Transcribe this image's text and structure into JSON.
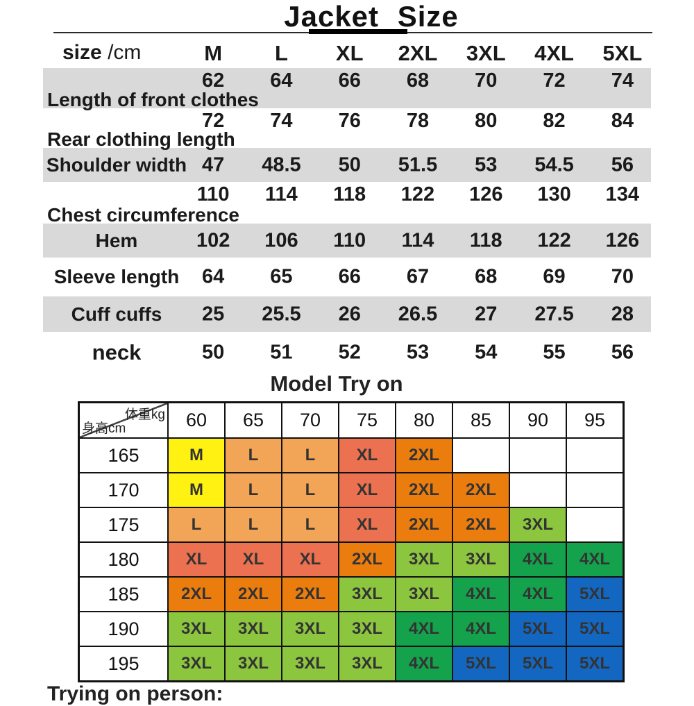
{
  "title": "Jacket Size",
  "size_table": {
    "header": {
      "label": "size",
      "unit": "/cm",
      "columns": [
        "M",
        "L",
        "XL",
        "2XL",
        "3XL",
        "4XL",
        "5XL"
      ]
    },
    "rows": [
      {
        "label": "Length of front clothes",
        "values": [
          "62",
          "64",
          "66",
          "68",
          "70",
          "72",
          "74"
        ]
      },
      {
        "label": "Rear clothing length",
        "values": [
          "72",
          "74",
          "76",
          "78",
          "80",
          "82",
          "84"
        ]
      },
      {
        "label": "Shoulder width",
        "values": [
          "47",
          "48.5",
          "50",
          "51.5",
          "53",
          "54.5",
          "56"
        ]
      },
      {
        "label": "Chest circumference",
        "values": [
          "110",
          "114",
          "118",
          "122",
          "126",
          "130",
          "134"
        ]
      },
      {
        "label": "Hem",
        "values": [
          "102",
          "106",
          "110",
          "114",
          "118",
          "122",
          "126"
        ]
      },
      {
        "label": "Sleeve length",
        "values": [
          "64",
          "65",
          "66",
          "67",
          "68",
          "69",
          "70"
        ]
      },
      {
        "label": "Cuff cuffs",
        "values": [
          "25",
          "25.5",
          "26",
          "26.5",
          "27",
          "27.5",
          "28"
        ]
      },
      {
        "label": "neck",
        "values": [
          "50",
          "51",
          "52",
          "53",
          "54",
          "55",
          "56"
        ]
      }
    ]
  },
  "model_try_on": {
    "title": "Model Try on",
    "corner": {
      "top_right": "体重kg",
      "bottom_left": "身高cm"
    },
    "weight_columns": [
      "60",
      "65",
      "70",
      "75",
      "80",
      "85",
      "90",
      "95"
    ],
    "rows": [
      {
        "height": "165",
        "cells": [
          "M",
          "L",
          "L",
          "XL",
          "2XL",
          "",
          "",
          ""
        ]
      },
      {
        "height": "170",
        "cells": [
          "M",
          "L",
          "L",
          "XL",
          "2XL",
          "2XL",
          "",
          ""
        ]
      },
      {
        "height": "175",
        "cells": [
          "L",
          "L",
          "L",
          "XL",
          "2XL",
          "2XL",
          "3XL",
          ""
        ]
      },
      {
        "height": "180",
        "cells": [
          "XL",
          "XL",
          "XL",
          "2XL",
          "3XL",
          "3XL",
          "4XL",
          "4XL"
        ]
      },
      {
        "height": "185",
        "cells": [
          "2XL",
          "2XL",
          "2XL",
          "3XL",
          "3XL",
          "4XL",
          "4XL",
          "5XL"
        ]
      },
      {
        "height": "190",
        "cells": [
          "3XL",
          "3XL",
          "3XL",
          "3XL",
          "4XL",
          "4XL",
          "5XL",
          "5XL"
        ]
      },
      {
        "height": "195",
        "cells": [
          "3XL",
          "3XL",
          "3XL",
          "3XL",
          "4XL",
          "5XL",
          "5XL",
          "5XL"
        ]
      }
    ],
    "size_colors": {
      "M": "#FFF112",
      "L": "#F2A556",
      "XL": "#EB7150",
      "2XL": "#EB7D0F",
      "3XL": "#8CC63F",
      "4XL": "#14A24C",
      "5XL": "#1467C0"
    }
  },
  "footer_text": "Trying on person:"
}
